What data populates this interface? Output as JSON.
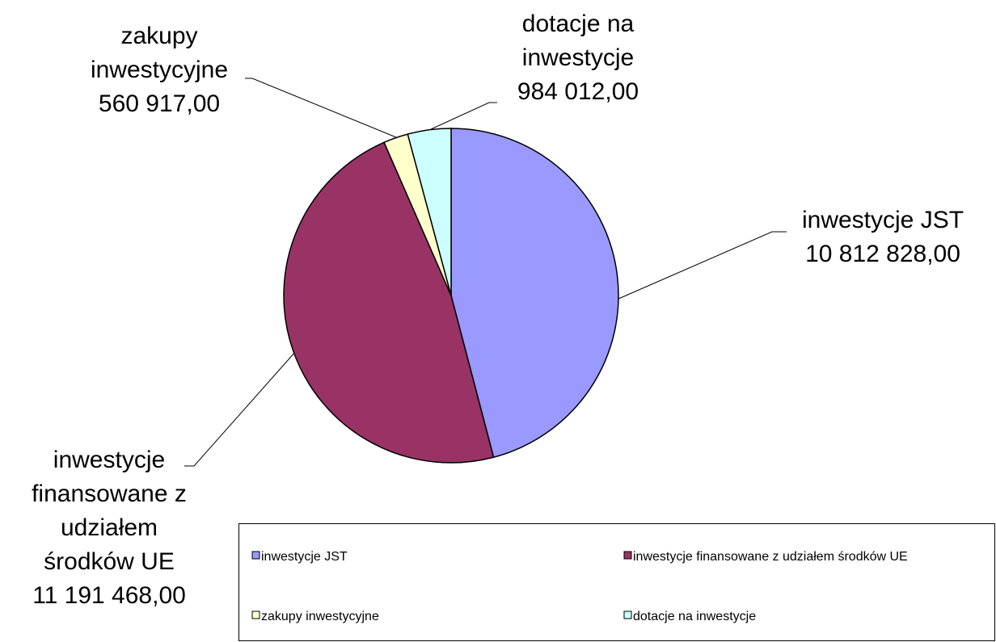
{
  "chart_data": {
    "type": "pie",
    "categories": [
      "inwestycje JST",
      "inwestycje finansowane z udziałem środków UE",
      "zakupy inwestycyjne",
      "dotacje na inwestycje"
    ],
    "values": [
      10812828,
      11191468,
      560917,
      984012
    ],
    "value_labels": [
      "10 812 828,00",
      "11 191 468,00",
      "560 917,00",
      "984 012,00"
    ],
    "colors": [
      "#9999ff",
      "#993366",
      "#ffffcc",
      "#ccffff"
    ],
    "legend": "bottom"
  }
}
